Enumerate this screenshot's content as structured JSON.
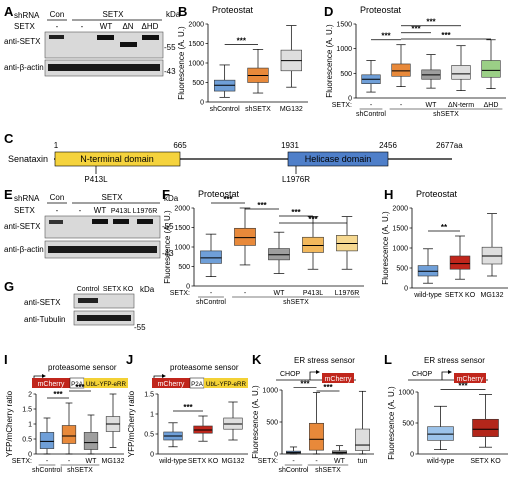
{
  "panels": {
    "A": "A",
    "B": "B",
    "C": "C",
    "D": "D",
    "E": "E",
    "F": "F",
    "G": "G",
    "H": "H",
    "I": "I",
    "J": "J",
    "K": "K",
    "L": "L"
  },
  "blot_A": {
    "shrna_label": "shRNA",
    "con": "Con",
    "setx_header": "SETX",
    "row2_label": "SETX",
    "lanes": [
      "-",
      "-",
      "WT",
      "ΔN",
      "ΔHD"
    ],
    "kda": "kDa",
    "anti_setx": "anti-SETX",
    "anti_actin": "anti-β-actin",
    "mw_top": "-55",
    "mw_bottom": "-43"
  },
  "blot_E": {
    "shrna_label": "shRNA",
    "con": "Con",
    "setx_header": "SETX",
    "row2_label": "SETX",
    "lanes": [
      "-",
      "-",
      "WT",
      "P413L",
      "L1976R"
    ],
    "kda": "kDa",
    "anti_setx": "anti-SETX",
    "anti_actin": "anti-β-actin",
    "mw_top": "-55",
    "mw_bottom": "-43"
  },
  "blot_G": {
    "lanes": [
      "Control",
      "SETX KO"
    ],
    "kda": "kDa",
    "anti_setx": "anti-SETX",
    "anti_tub": "anti-Tubulin",
    "mw": "-55"
  },
  "domain_C": {
    "protein": "Senataxin",
    "ticks": [
      "1",
      "665",
      "1931",
      "2456",
      "2677aa"
    ],
    "n_domain": "N-terminal domain",
    "helicase": "Helicase domain",
    "mut1": "P413L",
    "mut2": "L1976R",
    "n_color": "#f5d33d",
    "h_color": "#4f7fc9"
  },
  "sensor_I": {
    "title": "proteasome sensor",
    "parts": [
      "mCherry",
      "P2A",
      "UbL-YFP-eRR"
    ]
  },
  "sensor_J": {
    "title": "proteasome sensor",
    "parts": [
      "mCherry",
      "P2A",
      "UbL-YFP-eRR"
    ]
  },
  "sensor_K": {
    "title": "ER stress sensor",
    "promoter": "CHOP",
    "parts": [
      "mCherry"
    ]
  },
  "sensor_L": {
    "title": "ER stress sensor",
    "promoter": "CHOP",
    "parts": [
      "mCherry"
    ]
  },
  "colors": {
    "blue": "#6f9fd8",
    "orange": "#e8893a",
    "gray": "#9e9e9e",
    "lightgray": "#dedede",
    "green": "#9bcf86",
    "red": "#c0261c",
    "lightblue": "#9cc3ea",
    "darkred": "#b3261a"
  },
  "chart_data": [
    {
      "panel": "B",
      "type": "box",
      "title": "Proteostat",
      "ylabel": "Fluorescence (A. U.)",
      "ylim": [
        0,
        2000
      ],
      "yticks": [
        0,
        500,
        1000,
        1500,
        2000
      ],
      "categories": [
        "shControl",
        "shSETX",
        "MG132"
      ],
      "boxes": [
        {
          "min": 120,
          "q1": 280,
          "median": 430,
          "q3": 560,
          "max": 950
        },
        {
          "min": 230,
          "q1": 500,
          "median": 680,
          "q3": 870,
          "max": 1350
        },
        {
          "min": 380,
          "q1": 800,
          "median": 1060,
          "q3": 1330,
          "max": 1960
        }
      ],
      "colors": [
        "#6f9fd8",
        "#e8893a",
        "#dedede"
      ],
      "significance": [
        {
          "from": 0,
          "to": 1,
          "label": "***"
        }
      ]
    },
    {
      "panel": "D",
      "type": "box",
      "title": "Proteostat",
      "ylabel": "Fluorescence (A. U.)",
      "ylim": [
        0,
        1500
      ],
      "yticks": [
        0,
        500,
        1000,
        1500
      ],
      "row_label": "SETX:",
      "lanes": [
        "-",
        "-",
        "WT",
        "ΔN-term",
        "ΔHD"
      ],
      "groups": [
        "shControl",
        "shSETX"
      ],
      "boxes": [
        {
          "min": 120,
          "q1": 290,
          "median": 380,
          "q3": 470,
          "max": 760
        },
        {
          "min": 230,
          "q1": 440,
          "median": 550,
          "q3": 690,
          "max": 1080
        },
        {
          "min": 200,
          "q1": 380,
          "median": 470,
          "q3": 570,
          "max": 880
        },
        {
          "min": 150,
          "q1": 380,
          "median": 490,
          "q3": 660,
          "max": 1060
        },
        {
          "min": 190,
          "q1": 420,
          "median": 560,
          "q3": 760,
          "max": 1180
        }
      ],
      "colors": [
        "#6f9fd8",
        "#e8893a",
        "#9e9e9e",
        "#dedede",
        "#9bcf86"
      ],
      "significance": [
        {
          "from": 0,
          "to": 1,
          "label": "***"
        },
        {
          "from": 1,
          "to": 2,
          "label": "***"
        },
        {
          "from": 1,
          "to": 3,
          "label": "***"
        },
        {
          "from": 1,
          "to": 4,
          "label": "***"
        }
      ]
    },
    {
      "panel": "F",
      "type": "box",
      "title": "Proteostat",
      "ylabel": "Fluorescence (A. U.)",
      "ylim": [
        0,
        2000
      ],
      "yticks": [
        0,
        500,
        1000,
        1500,
        2000
      ],
      "row_label": "SETX:",
      "lanes": [
        "-",
        "-",
        "WT",
        "P413L",
        "L1976R"
      ],
      "groups": [
        "shControl",
        "shSETX"
      ],
      "boxes": [
        {
          "min": 240,
          "q1": 580,
          "median": 720,
          "q3": 900,
          "max": 1330
        },
        {
          "min": 540,
          "q1": 1040,
          "median": 1240,
          "q3": 1480,
          "max": 2000
        },
        {
          "min": 320,
          "q1": 670,
          "median": 800,
          "q3": 960,
          "max": 1380
        },
        {
          "min": 430,
          "q1": 860,
          "median": 1040,
          "q3": 1250,
          "max": 1780
        },
        {
          "min": 430,
          "q1": 900,
          "median": 1090,
          "q3": 1300,
          "max": 1780
        }
      ],
      "colors": [
        "#6f9fd8",
        "#e8893a",
        "#9e9e9e",
        "#f2b85c",
        "#f6d890"
      ],
      "significance": [
        {
          "from": 0,
          "to": 1,
          "label": "***"
        },
        {
          "from": 1,
          "to": 2,
          "label": "***"
        },
        {
          "from": 2,
          "to": 3,
          "label": "***"
        },
        {
          "from": 2,
          "to": 4,
          "label": "***"
        }
      ]
    },
    {
      "panel": "H",
      "type": "box",
      "title": "Proteostat",
      "ylabel": "Fluorescence (A. U.)",
      "ylim": [
        0,
        2000
      ],
      "yticks": [
        0,
        500,
        1000,
        1500,
        2000
      ],
      "categories": [
        "wild-type",
        "SETX KO",
        "MG132"
      ],
      "boxes": [
        {
          "min": 120,
          "q1": 300,
          "median": 420,
          "q3": 560,
          "max": 980
        },
        {
          "min": 220,
          "q1": 470,
          "median": 610,
          "q3": 800,
          "max": 1300
        },
        {
          "min": 300,
          "q1": 600,
          "median": 800,
          "q3": 1020,
          "max": 1860
        }
      ],
      "colors": [
        "#6f9fd8",
        "#c0261c",
        "#dedede"
      ],
      "significance": [
        {
          "from": 0,
          "to": 1,
          "label": "**"
        }
      ]
    },
    {
      "panel": "I",
      "type": "box",
      "ylabel": "YFP/mCherry ratio",
      "ylim": [
        0,
        2
      ],
      "yticks": [
        0,
        0.5,
        1,
        1.5,
        2
      ],
      "row_label": "SETX:",
      "lanes": [
        "-",
        "-",
        "WT"
      ],
      "groups": [
        "shControl",
        "shSETX",
        "MG132"
      ],
      "boxes": [
        {
          "min": 0.0,
          "q1": 0.18,
          "median": 0.42,
          "q3": 0.72,
          "max": 1.2
        },
        {
          "min": 0.0,
          "q1": 0.35,
          "median": 0.6,
          "q3": 0.95,
          "max": 1.7
        },
        {
          "min": 0.0,
          "q1": 0.15,
          "median": 0.38,
          "q3": 0.72,
          "max": 1.3
        },
        {
          "min": 0.22,
          "q1": 0.75,
          "median": 1.0,
          "q3": 1.25,
          "max": 2.0
        }
      ],
      "colors": [
        "#6f9fd8",
        "#e8893a",
        "#9e9e9e",
        "#dedede"
      ],
      "significance": [
        {
          "from": 0,
          "to": 1,
          "label": "***"
        },
        {
          "from": 1,
          "to": 2,
          "label": "***"
        }
      ]
    },
    {
      "panel": "J",
      "type": "box",
      "ylabel": "YFP/mCherry ratio",
      "ylim": [
        0,
        1.5
      ],
      "yticks": [
        0,
        0.5,
        1,
        1.5
      ],
      "categories": [
        "wild-type",
        "SETX KO",
        "MG132"
      ],
      "boxes": [
        {
          "min": 0.18,
          "q1": 0.35,
          "median": 0.45,
          "q3": 0.55,
          "max": 0.78
        },
        {
          "min": 0.32,
          "q1": 0.52,
          "median": 0.6,
          "q3": 0.7,
          "max": 0.95
        },
        {
          "min": 0.35,
          "q1": 0.62,
          "median": 0.75,
          "q3": 0.9,
          "max": 1.3
        }
      ],
      "colors": [
        "#6f9fd8",
        "#c0261c",
        "#dedede"
      ],
      "significance": [
        {
          "from": 0,
          "to": 1,
          "label": "***"
        }
      ]
    },
    {
      "panel": "K",
      "type": "box",
      "ylabel": "Fluorescence (A. U.)",
      "ylim": [
        0,
        1000
      ],
      "yticks": [
        0,
        500,
        1000
      ],
      "row_label": "SETX:",
      "lanes": [
        "-",
        "-",
        "WT"
      ],
      "groups": [
        "shControl",
        "shSETX",
        "tun"
      ],
      "boxes": [
        {
          "min": 0,
          "q1": 10,
          "median": 25,
          "q3": 45,
          "max": 110
        },
        {
          "min": 0,
          "q1": 60,
          "median": 230,
          "q3": 480,
          "max": 960
        },
        {
          "min": 0,
          "q1": 10,
          "median": 25,
          "q3": 50,
          "max": 130
        },
        {
          "min": 0,
          "q1": 55,
          "median": 140,
          "q3": 390,
          "max": 980
        }
      ],
      "colors": [
        "#6f9fd8",
        "#e8893a",
        "#9e9e9e",
        "#dedede"
      ],
      "significance": [
        {
          "from": 0,
          "to": 1,
          "label": "***"
        },
        {
          "from": 1,
          "to": 2,
          "label": "***"
        }
      ]
    },
    {
      "panel": "L",
      "type": "box",
      "ylabel": "Fluorescence (A. U.)",
      "ylim": [
        0,
        1000
      ],
      "yticks": [
        0,
        500,
        1000
      ],
      "categories": [
        "wild-type",
        "SETX KO"
      ],
      "boxes": [
        {
          "min": 70,
          "q1": 220,
          "median": 320,
          "q3": 440,
          "max": 770
        },
        {
          "min": 110,
          "q1": 280,
          "median": 400,
          "q3": 560,
          "max": 960
        }
      ],
      "colors": [
        "#9cc3ea",
        "#b3261a"
      ],
      "significance": [
        {
          "from": 0,
          "to": 1,
          "label": "***"
        }
      ]
    }
  ]
}
